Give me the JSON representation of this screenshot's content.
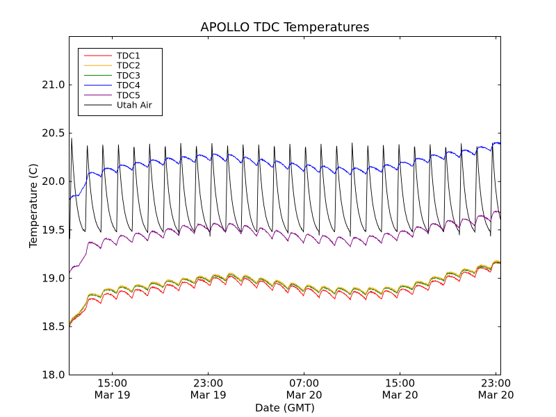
{
  "chart_data": {
    "type": "line",
    "title": "APOLLO TDC Temperatures",
    "xlabel": "Date (GMT)",
    "ylabel": "Temperature (C)",
    "x_units": "hours since 00:00 Mar 19 (GMT)",
    "xlim": [
      11.4,
      47.4
    ],
    "ylim": [
      18.0,
      21.5
    ],
    "grid": false,
    "legend_position": "top-left",
    "yticks": [
      18.0,
      18.5,
      19.0,
      19.5,
      20.0,
      20.5,
      21.0
    ],
    "ytick_labels": [
      "18.0",
      "18.5",
      "19.0",
      "19.5",
      "20.0",
      "20.5",
      "21.0"
    ],
    "xticks": [
      15,
      23,
      31,
      39,
      47
    ],
    "xtick_labels": [
      {
        "time": "15:00",
        "date": "Mar 19"
      },
      {
        "time": "23:00",
        "date": "Mar 19"
      },
      {
        "time": "07:00",
        "date": "Mar 20"
      },
      {
        "time": "15:00",
        "date": "Mar 20"
      },
      {
        "time": "23:00",
        "date": "Mar 20"
      }
    ],
    "cycle_period_hours": 1.3,
    "series": [
      {
        "name": "TDC1",
        "color": "#ff0000",
        "baseline": {
          "x": [
            11.4,
            12.2,
            13,
            15,
            17,
            19,
            21,
            23,
            25,
            27,
            29,
            31,
            33,
            35,
            37,
            39,
            41,
            43,
            45,
            47.4
          ],
          "y": [
            18.52,
            18.6,
            18.74,
            18.82,
            18.84,
            18.88,
            18.92,
            18.96,
            18.98,
            18.94,
            18.9,
            18.86,
            18.83,
            18.82,
            18.82,
            18.84,
            18.9,
            18.98,
            19.04,
            19.14
          ]
        },
        "amplitude": 0.08
      },
      {
        "name": "TDC2",
        "color": "#ffa500",
        "baseline": {
          "x": [
            11.4,
            12.2,
            13,
            15,
            17,
            19,
            21,
            23,
            25,
            27,
            29,
            31,
            33,
            35,
            37,
            39,
            41,
            43,
            45,
            47.4
          ],
          "y": [
            18.55,
            18.63,
            18.8,
            18.88,
            18.9,
            18.94,
            18.97,
            19.0,
            19.02,
            18.98,
            18.94,
            18.9,
            18.88,
            18.87,
            18.87,
            18.89,
            18.95,
            19.03,
            19.08,
            19.16
          ]
        },
        "amplitude": 0.06
      },
      {
        "name": "TDC3",
        "color": "#008000",
        "baseline": {
          "x": [
            11.4,
            12.2,
            13,
            15,
            17,
            19,
            21,
            23,
            25,
            27,
            29,
            31,
            33,
            35,
            37,
            39,
            41,
            43,
            45,
            47.4
          ],
          "y": [
            18.54,
            18.62,
            18.79,
            18.87,
            18.89,
            18.93,
            18.96,
            18.99,
            19.01,
            18.97,
            18.93,
            18.89,
            18.87,
            18.86,
            18.86,
            18.88,
            18.94,
            19.02,
            19.07,
            19.15
          ]
        },
        "amplitude": 0.06
      },
      {
        "name": "TDC4",
        "color": "#0000ff",
        "baseline": {
          "x": [
            11.4,
            12.2,
            13,
            15,
            17,
            19,
            21,
            23,
            25,
            27,
            29,
            31,
            33,
            35,
            37,
            39,
            41,
            43,
            45,
            47.4
          ],
          "y": [
            19.83,
            19.85,
            20.05,
            20.12,
            20.16,
            20.2,
            20.22,
            20.25,
            20.24,
            20.2,
            20.17,
            20.14,
            20.12,
            20.1,
            20.12,
            20.16,
            20.22,
            20.27,
            20.3,
            20.38
          ]
        },
        "amplitude": 0.07
      },
      {
        "name": "TDC5",
        "color": "#800080",
        "baseline": {
          "x": [
            11.4,
            12.2,
            13,
            15,
            17,
            19,
            21,
            23,
            25,
            27,
            29,
            31,
            33,
            35,
            37,
            39,
            41,
            43,
            45,
            47.4
          ],
          "y": [
            19.08,
            19.12,
            19.32,
            19.38,
            19.42,
            19.45,
            19.5,
            19.52,
            19.52,
            19.48,
            19.44,
            19.41,
            19.39,
            19.37,
            19.4,
            19.44,
            19.5,
            19.55,
            19.58,
            19.66
          ]
        },
        "amplitude": 0.09
      },
      {
        "name": "Utah Air",
        "color": "#000000",
        "peak": 20.4,
        "trough": 19.42,
        "note": "sawtooth: sharp rise to ~20.4 then decay to ~19.4 each cycle"
      }
    ]
  }
}
